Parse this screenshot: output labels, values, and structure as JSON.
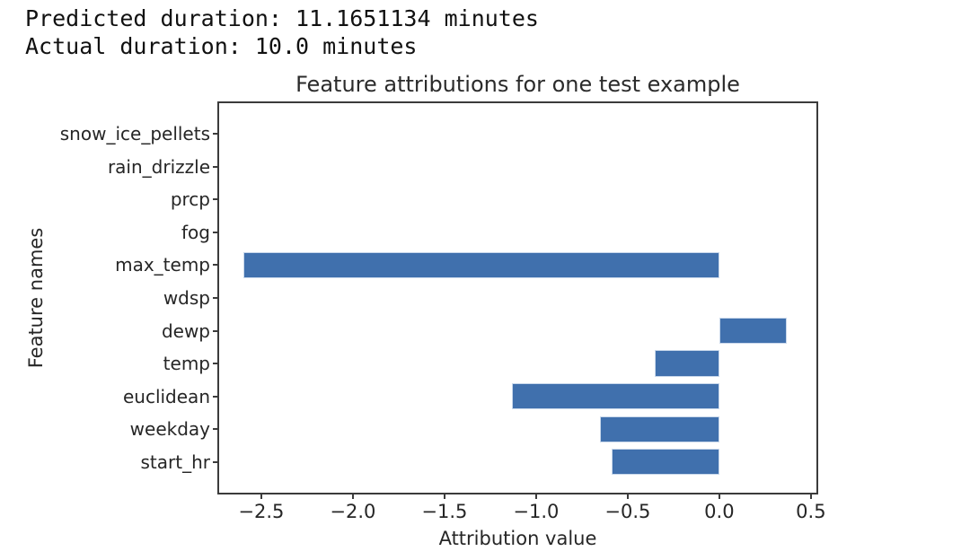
{
  "stdout": {
    "line1": "Predicted duration: 11.1651134 minutes",
    "line2": "Actual duration: 10.0 minutes"
  },
  "chart_data": {
    "type": "bar",
    "orientation": "horizontal",
    "title": "Feature attributions for one test example",
    "xlabel": "Attribution value",
    "ylabel": "Feature names",
    "categories_top_to_bottom": [
      "snow_ice_pellets",
      "rain_drizzle",
      "prcp",
      "fog",
      "max_temp",
      "wdsp",
      "dewp",
      "temp",
      "euclidean",
      "weekday",
      "start_hr"
    ],
    "values_top_to_bottom": [
      0,
      0,
      0,
      0,
      -2.6,
      0,
      0.37,
      -0.35,
      -1.13,
      -0.65,
      -0.59
    ],
    "xlim": [
      -2.73,
      0.53
    ],
    "ylim_units": [
      -0.94,
      10.94
    ],
    "bar_height_units": 0.8,
    "x_ticks": [
      {
        "value": -2.5,
        "label": "−2.5"
      },
      {
        "value": -2.0,
        "label": "−2.0"
      },
      {
        "value": -1.5,
        "label": "−1.5"
      },
      {
        "value": -1.0,
        "label": "−1.0"
      },
      {
        "value": -0.5,
        "label": "−0.5"
      },
      {
        "value": 0.0,
        "label": "0.0"
      },
      {
        "value": 0.5,
        "label": "0.5"
      }
    ],
    "grid": false,
    "legend": null,
    "bar_color": "#4070ad",
    "bar_edge_color": "#c9d8eb",
    "spine_color": "#3b3b3b",
    "text_color": "#262626"
  }
}
